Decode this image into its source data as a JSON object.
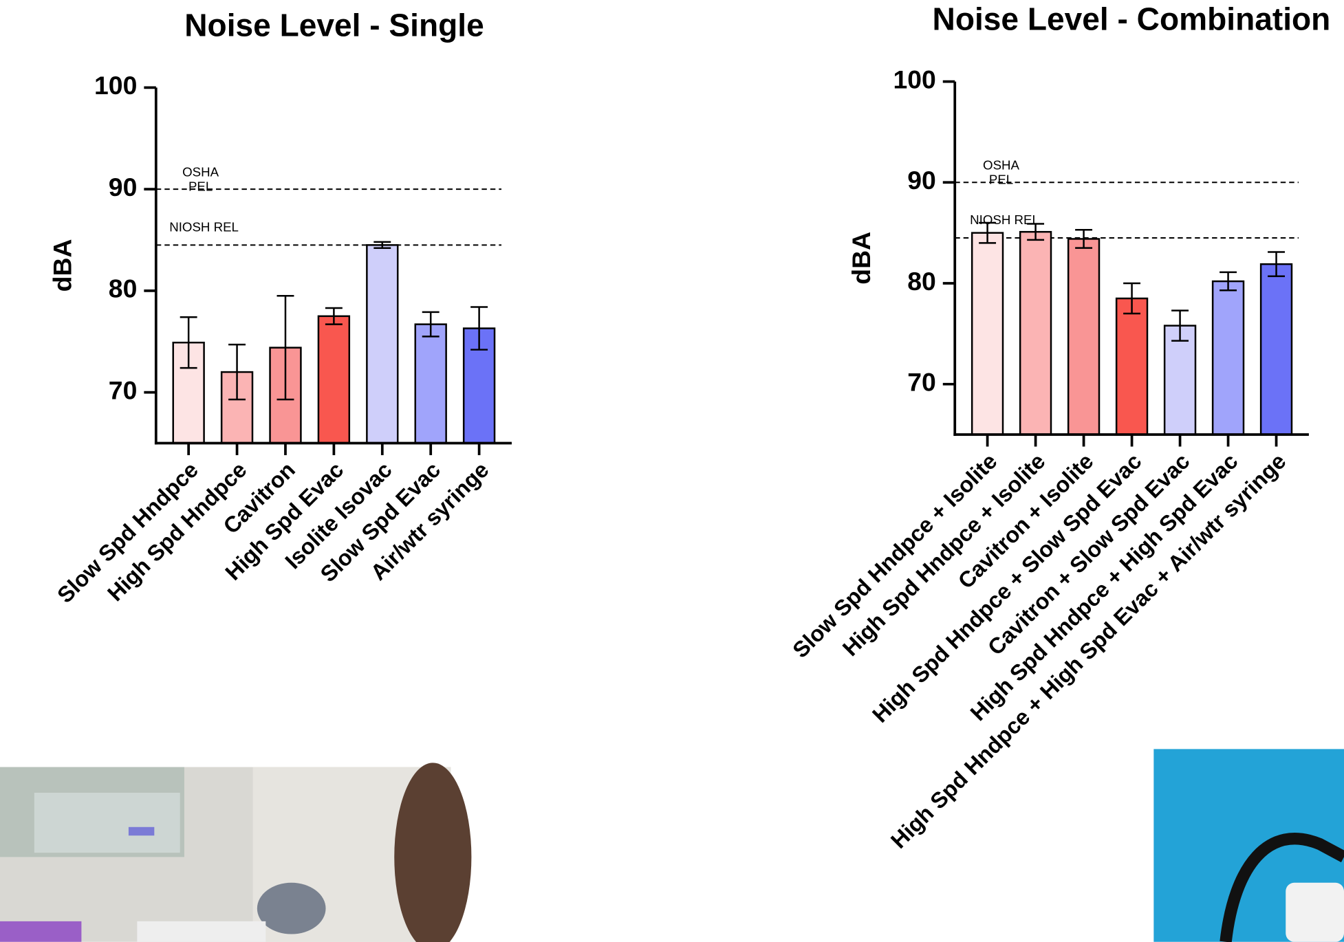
{
  "chart_data": [
    {
      "type": "bar",
      "title": "Noise Level -  Single",
      "y_label": "dBA",
      "categories": [
        "Slow Spd Hndpce",
        "High Spd Hndpce",
        "Cavitron",
        "High Spd Evac",
        "Isolite Isovac",
        "Slow Spd Evac",
        "Air/wtr syringe"
      ],
      "values": [
        74.9,
        72.0,
        74.4,
        77.5,
        84.5,
        76.7,
        76.3
      ],
      "errors": [
        2.5,
        2.7,
        5.1,
        0.8,
        0.3,
        1.2,
        2.1
      ],
      "colors": [
        "#fde4e4",
        "#fbb4b4",
        "#f99595",
        "#f9574f",
        "#cfcffa",
        "#a0a4fb",
        "#6b72f7"
      ],
      "ylim": [
        65,
        100
      ],
      "yticks": [
        70,
        80,
        90,
        100
      ],
      "reference_lines": [
        {
          "label": [
            "OSHA",
            "PEL"
          ],
          "value": 90
        },
        {
          "label": [
            "NIOSH REL"
          ],
          "value": 84.5
        }
      ]
    },
    {
      "type": "bar",
      "title": "Noise Level - Combination",
      "y_label": "dBA",
      "categories": [
        "Slow Spd Hndpce + Isolite",
        "High Spd Hndpce + Isolite",
        "Cavitron + Isolite",
        "High Spd Hndpce + Slow Spd Evac",
        "Cavitron + Slow Spd Evac",
        "High Spd Hndpce + High Spd Evac",
        "High Spd Hndpce + High Spd Evac + Air/wtr syringe"
      ],
      "values": [
        85.0,
        85.1,
        84.4,
        78.5,
        75.8,
        80.2,
        81.9
      ],
      "errors": [
        1.0,
        0.8,
        0.9,
        1.5,
        1.5,
        0.9,
        1.2
      ],
      "colors": [
        "#fde4e4",
        "#fbb4b4",
        "#f99595",
        "#f9574f",
        "#cfcffa",
        "#a0a4fb",
        "#6b72f7"
      ],
      "ylim": [
        65,
        100
      ],
      "yticks": [
        70,
        80,
        90,
        100
      ],
      "reference_lines": [
        {
          "label": [
            "OSHA",
            "PEL"
          ],
          "value": 90
        },
        {
          "label": [
            "NIOSH REL"
          ],
          "value": 84.5
        }
      ]
    }
  ]
}
